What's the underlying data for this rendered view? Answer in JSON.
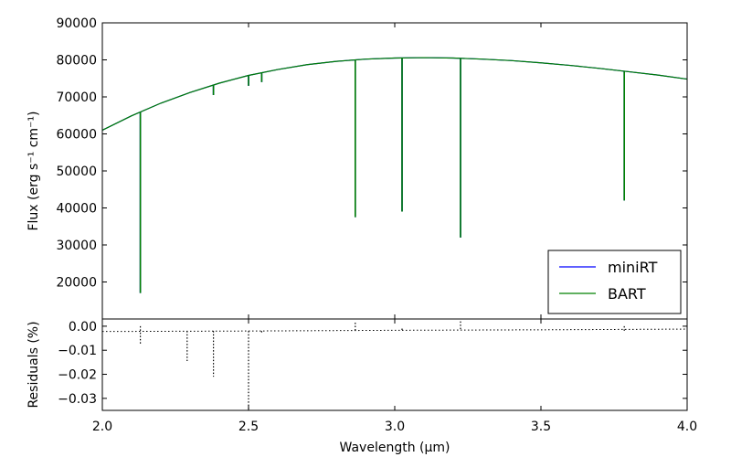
{
  "chart_data": [
    {
      "panel": "main",
      "type": "line",
      "xlabel": "",
      "ylabel": "Flux (erg s⁻¹ cm⁻¹)",
      "xlim": [
        2.0,
        4.0
      ],
      "ylim": [
        10000,
        90000
      ],
      "ytick_labels": [
        "20000",
        "30000",
        "40000",
        "50000",
        "60000",
        "70000",
        "80000",
        "90000"
      ],
      "ytick_values": [
        20000,
        30000,
        40000,
        50000,
        60000,
        70000,
        80000,
        90000
      ],
      "grid": false,
      "legend_position": "bottom-right",
      "continuum": {
        "x": [
          2.0,
          2.1,
          2.2,
          2.3,
          2.4,
          2.5,
          2.6,
          2.7,
          2.8,
          2.9,
          3.0,
          3.1,
          3.2,
          3.3,
          3.4,
          3.5,
          3.6,
          3.7,
          3.8,
          3.9,
          4.0
        ],
        "y": [
          61000,
          64900,
          68300,
          71200,
          73700,
          75800,
          77400,
          78700,
          79600,
          80200,
          80500,
          80600,
          80500,
          80200,
          79800,
          79200,
          78500,
          77700,
          76800,
          75900,
          74800
        ]
      },
      "absorption_lines": [
        {
          "x": 2.13,
          "min": 17000
        },
        {
          "x": 2.38,
          "min": 70500
        },
        {
          "x": 2.5,
          "min": 73000
        },
        {
          "x": 2.545,
          "min": 74000
        },
        {
          "x": 2.865,
          "min": 37500
        },
        {
          "x": 3.025,
          "min": 39000
        },
        {
          "x": 3.225,
          "min": 32000
        },
        {
          "x": 3.785,
          "min": 42000
        }
      ],
      "series": [
        {
          "name": "miniRT",
          "color": "#0000ff"
        },
        {
          "name": "BART",
          "color": "#008000"
        }
      ]
    },
    {
      "panel": "residuals",
      "type": "line",
      "xlabel": "Wavelength  (μm)",
      "ylabel": "Residuals (%)",
      "xlim": [
        2.0,
        4.0
      ],
      "ylim": [
        -0.035,
        0.003
      ],
      "xtick_labels": [
        "2.0",
        "2.5",
        "3.0",
        "3.5",
        "4.0"
      ],
      "xtick_values": [
        2.0,
        2.5,
        3.0,
        3.5,
        4.0
      ],
      "ytick_labels": [
        "0.00",
        "−0.01",
        "−0.02",
        "−0.03"
      ],
      "ytick_values": [
        0.0,
        -0.01,
        -0.02,
        -0.03
      ],
      "baseline": {
        "x": [
          2.0,
          2.5,
          3.0,
          3.5,
          4.0
        ],
        "y": [
          -0.0022,
          -0.002,
          -0.0017,
          -0.0015,
          -0.0012
        ]
      },
      "spikes": [
        {
          "x": 2.13,
          "min": -0.0075,
          "max": 0.0
        },
        {
          "x": 2.29,
          "min": -0.0145,
          "max": -0.002
        },
        {
          "x": 2.38,
          "min": -0.021,
          "max": -0.002
        },
        {
          "x": 2.5,
          "min": -0.035,
          "max": -0.002
        },
        {
          "x": 2.545,
          "min": -0.003,
          "max": -0.002
        },
        {
          "x": 2.865,
          "min": -0.002,
          "max": 0.0015
        },
        {
          "x": 3.025,
          "min": -0.002,
          "max": -0.001
        },
        {
          "x": 3.225,
          "min": -0.002,
          "max": 0.002
        },
        {
          "x": 3.785,
          "min": -0.002,
          "max": 0.0
        }
      ],
      "color": "#000000"
    }
  ]
}
